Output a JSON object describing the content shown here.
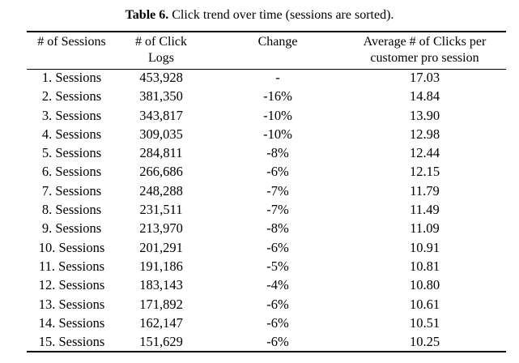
{
  "caption": {
    "label": "Table 6.",
    "text": " Click trend over time (sessions are sorted)."
  },
  "headers": [
    "# of Sessions",
    "# of Click Logs",
    "Change",
    "Average # of Clicks per customer pro session"
  ],
  "header_lines": {
    "sessions": [
      "# of Sessions"
    ],
    "click_logs": [
      "# of Click",
      "Logs"
    ],
    "change": [
      "Change"
    ],
    "avg": [
      "Average # of Clicks per",
      "customer pro session"
    ]
  },
  "rows": [
    {
      "sessions": "1. Sessions",
      "click_logs": "453,928",
      "change": "-",
      "avg": "17.03"
    },
    {
      "sessions": "2. Sessions",
      "click_logs": "381,350",
      "change": "-16%",
      "avg": "14.84"
    },
    {
      "sessions": "3. Sessions",
      "click_logs": "343,817",
      "change": "-10%",
      "avg": "13.90"
    },
    {
      "sessions": "4. Sessions",
      "click_logs": "309,035",
      "change": "-10%",
      "avg": "12.98"
    },
    {
      "sessions": "5. Sessions",
      "click_logs": "284,811",
      "change": "-8%",
      "avg": "12.44"
    },
    {
      "sessions": "6. Sessions",
      "click_logs": "266,686",
      "change": "-6%",
      "avg": "12.15"
    },
    {
      "sessions": "7. Sessions",
      "click_logs": "248,288",
      "change": "-7%",
      "avg": "11.79"
    },
    {
      "sessions": "8. Sessions",
      "click_logs": "231,511",
      "change": "-7%",
      "avg": "11.49"
    },
    {
      "sessions": "9. Sessions",
      "click_logs": "213,970",
      "change": "-8%",
      "avg": "11.09"
    },
    {
      "sessions": "10. Sessions",
      "click_logs": "201,291",
      "change": "-6%",
      "avg": "10.91"
    },
    {
      "sessions": "11. Sessions",
      "click_logs": "191,186",
      "change": "-5%",
      "avg": "10.81"
    },
    {
      "sessions": "12. Sessions",
      "click_logs": "183,143",
      "change": "-4%",
      "avg": "10.80"
    },
    {
      "sessions": "13. Sessions",
      "click_logs": "171,892",
      "change": "-6%",
      "avg": "10.61"
    },
    {
      "sessions": "14. Sessions",
      "click_logs": "162,147",
      "change": "-6%",
      "avg": "10.51"
    },
    {
      "sessions": "15. Sessions",
      "click_logs": "151,629",
      "change": "-6%",
      "avg": "10.25"
    }
  ]
}
